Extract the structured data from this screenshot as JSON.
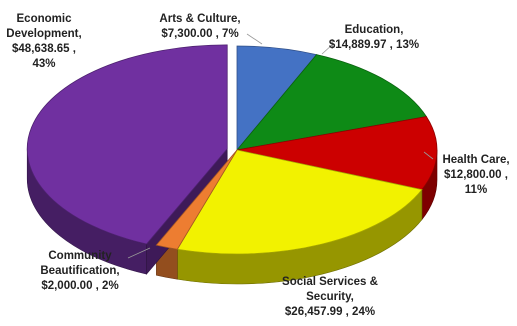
{
  "chart_data": {
    "type": "pie",
    "title": "",
    "style": "3d-exploded-slice",
    "slices": [
      {
        "label_lines": [
          "Arts & Culture,",
          "$7,300.00 , 7%"
        ],
        "category": "Arts & Culture",
        "value": 7300.0,
        "percent": 7,
        "color": "#4472C4"
      },
      {
        "label_lines": [
          "Education,",
          "$14,889.97 , 13%"
        ],
        "category": "Education",
        "value": 14889.97,
        "percent": 13,
        "color": "#0E8A16"
      },
      {
        "label_lines": [
          "Health Care,",
          "$12,800.00 ,",
          "11%"
        ],
        "category": "Health Care",
        "value": 12800.0,
        "percent": 11,
        "color": "#CC0000"
      },
      {
        "label_lines": [
          "Social Services &",
          "Security,",
          "$26,457.99 , 24%"
        ],
        "category": "Social Services & Security",
        "value": 26457.99,
        "percent": 24,
        "color": "#F2F200"
      },
      {
        "label_lines": [
          "Community",
          "Beautification,",
          "$2,000.00 , 2%"
        ],
        "category": "Community Beautification",
        "value": 2000.0,
        "percent": 2,
        "color": "#ED7D31"
      },
      {
        "label_lines": [
          "Economic",
          "Development,",
          "$48,638.65 ,",
          "43%"
        ],
        "category": "Economic Development",
        "value": 48638.65,
        "percent": 43,
        "color": "#7030A0"
      }
    ],
    "exploded": "Economic Development",
    "legend": "none"
  }
}
